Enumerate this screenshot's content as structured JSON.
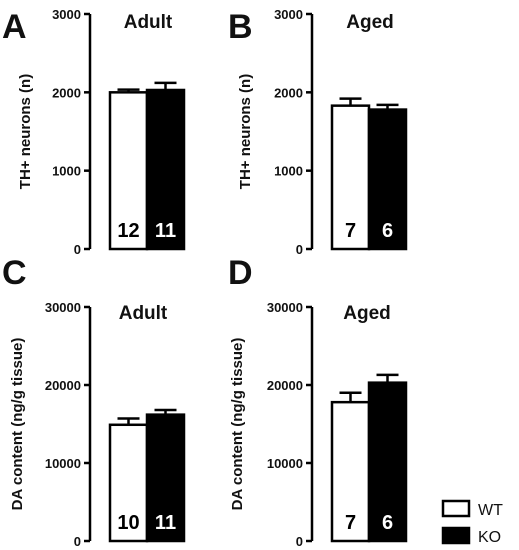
{
  "legend": [
    {
      "label": "WT",
      "fill": "#ffffff"
    },
    {
      "label": "KO",
      "fill": "#000000"
    }
  ],
  "chart_data": [
    {
      "type": "bar",
      "panel": "A",
      "title": "Adult",
      "ylabel": "TH+ neurons (n)",
      "ylim": [
        0,
        3000
      ],
      "yticks": [
        0,
        1000,
        2000,
        3000
      ],
      "series": [
        {
          "name": "WT",
          "value": 2000,
          "error": 35,
          "n": "12"
        },
        {
          "name": "KO",
          "value": 2030,
          "error": 90,
          "n": "11"
        }
      ]
    },
    {
      "type": "bar",
      "panel": "B",
      "title": "Aged",
      "ylabel": "TH+ neurons (n)",
      "ylim": [
        0,
        3000
      ],
      "yticks": [
        0,
        1000,
        2000,
        3000
      ],
      "series": [
        {
          "name": "WT",
          "value": 1830,
          "error": 90,
          "n": "7"
        },
        {
          "name": "KO",
          "value": 1780,
          "error": 60,
          "n": "6"
        }
      ]
    },
    {
      "type": "bar",
      "panel": "C",
      "title": "Adult",
      "ylabel": "DA content (ng/g tissue)",
      "ylim": [
        0,
        30000
      ],
      "yticks": [
        0,
        10000,
        20000,
        30000
      ],
      "series": [
        {
          "name": "WT",
          "value": 14900,
          "error": 800,
          "n": "10"
        },
        {
          "name": "KO",
          "value": 16200,
          "error": 600,
          "n": "11"
        }
      ]
    },
    {
      "type": "bar",
      "panel": "D",
      "title": "Aged",
      "ylabel": "DA content (ng/g tissue)",
      "ylim": [
        0,
        30000
      ],
      "yticks": [
        0,
        10000,
        20000,
        30000
      ],
      "series": [
        {
          "name": "WT",
          "value": 17800,
          "error": 1200,
          "n": "7"
        },
        {
          "name": "KO",
          "value": 20300,
          "error": 1000,
          "n": "6"
        }
      ]
    }
  ]
}
